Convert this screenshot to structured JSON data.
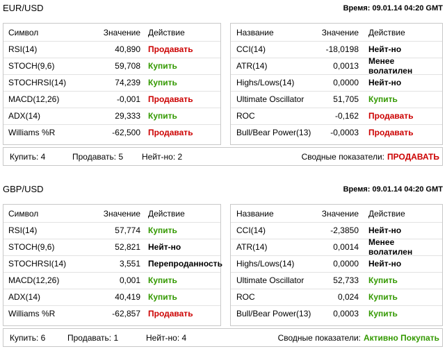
{
  "sections": [
    {
      "title": "EUR/USD",
      "time": "Время: 09.01.14 04:20 GMT",
      "left": {
        "headers": [
          "Символ",
          "Значение",
          "Действие"
        ],
        "rows": [
          {
            "name": "RSI(14)",
            "value": "40,890",
            "action": "Продавать",
            "color": "#cc0000"
          },
          {
            "name": "STOCH(9,6)",
            "value": "59,708",
            "action": "Купить",
            "color": "#339900"
          },
          {
            "name": "STOCHRSI(14)",
            "value": "74,239",
            "action": "Купить",
            "color": "#339900"
          },
          {
            "name": "MACD(12,26)",
            "value": "-0,001",
            "action": "Продавать",
            "color": "#cc0000"
          },
          {
            "name": "ADX(14)",
            "value": "29,333",
            "action": "Купить",
            "color": "#339900"
          },
          {
            "name": "Williams %R",
            "value": "-62,500",
            "action": "Продавать",
            "color": "#cc0000"
          }
        ]
      },
      "right": {
        "headers": [
          "Название",
          "Значение",
          "Действие"
        ],
        "rows": [
          {
            "name": "CCI(14)",
            "value": "-18,0198",
            "action": "Нейт-но",
            "color": "#000000"
          },
          {
            "name": "ATR(14)",
            "value": "0,0013",
            "action": "Менее волатилен",
            "color": "#000000"
          },
          {
            "name": "Highs/Lows(14)",
            "value": "0,0000",
            "action": "Нейт-но",
            "color": "#000000"
          },
          {
            "name": "Ultimate Oscillator",
            "value": "51,705",
            "action": "Купить",
            "color": "#339900"
          },
          {
            "name": "ROC",
            "value": "-0,162",
            "action": "Продавать",
            "color": "#cc0000"
          },
          {
            "name": "Bull/Bear Power(13)",
            "value": "-0,0003",
            "action": "Продавать",
            "color": "#cc0000"
          }
        ]
      },
      "summary": {
        "buy": "Купить: 4",
        "sell": "Продавать: 5",
        "neutral": "Нейт-но: 2",
        "label": "Сводные показатели:",
        "verdict": "ПРОДАВАТЬ",
        "verdict_color": "#cc0000"
      }
    },
    {
      "title": "GBP/USD",
      "time": "Время: 09.01.14 04:20 GMT",
      "left": {
        "headers": [
          "Символ",
          "Значение",
          "Действие"
        ],
        "rows": [
          {
            "name": "RSI(14)",
            "value": "57,774",
            "action": "Купить",
            "color": "#339900"
          },
          {
            "name": "STOCH(9,6)",
            "value": "52,821",
            "action": "Нейт-но",
            "color": "#000000"
          },
          {
            "name": "STOCHRSI(14)",
            "value": "3,551",
            "action": "Перепроданность",
            "color": "#000000"
          },
          {
            "name": "MACD(12,26)",
            "value": "0,001",
            "action": "Купить",
            "color": "#339900"
          },
          {
            "name": "ADX(14)",
            "value": "40,419",
            "action": "Купить",
            "color": "#339900"
          },
          {
            "name": "Williams %R",
            "value": "-62,857",
            "action": "Продавать",
            "color": "#cc0000"
          }
        ]
      },
      "right": {
        "headers": [
          "Название",
          "Значение",
          "Действие"
        ],
        "rows": [
          {
            "name": "CCI(14)",
            "value": "-2,3850",
            "action": "Нейт-но",
            "color": "#000000"
          },
          {
            "name": "ATR(14)",
            "value": "0,0014",
            "action": "Менее волатилен",
            "color": "#000000"
          },
          {
            "name": "Highs/Lows(14)",
            "value": "0,0000",
            "action": "Нейт-но",
            "color": "#000000"
          },
          {
            "name": "Ultimate Oscillator",
            "value": "52,733",
            "action": "Купить",
            "color": "#339900"
          },
          {
            "name": "ROC",
            "value": "0,024",
            "action": "Купить",
            "color": "#339900"
          },
          {
            "name": "Bull/Bear Power(13)",
            "value": "0,0003",
            "action": "Купить",
            "color": "#339900"
          }
        ]
      },
      "summary": {
        "buy": "Купить: 6",
        "sell": "Продавать: 1",
        "neutral": "Нейт-но: 4",
        "label": "Сводные показатели:",
        "verdict": "Активно Покупать",
        "verdict_color": "#339900"
      }
    }
  ]
}
